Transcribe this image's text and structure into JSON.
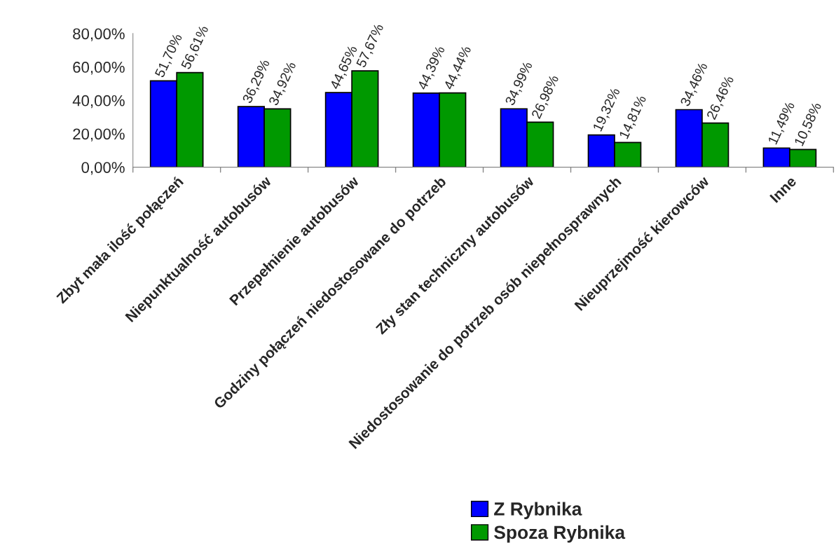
{
  "chart_data": {
    "type": "bar",
    "categories": [
      "Zbyt mała ilość połączeń",
      "Niepunktualność autobusów",
      "Przepełnienie autobusów",
      "Godziny połączeń niedostosowane do potrzeb",
      "Zły stan techniczny autobusów",
      "Niedostosowanie do potrzeb osób niepełnosprawnych",
      "Nieuprzejmość kierowców",
      "Inne"
    ],
    "series": [
      {
        "name": "Z Rybnika",
        "color": "#0000ff",
        "values": [
          51.7,
          36.29,
          44.65,
          44.39,
          34.99,
          19.32,
          34.46,
          11.49
        ],
        "value_labels": [
          "51,70%",
          "36,29%",
          "44,65%",
          "44,39%",
          "34,99%",
          "19,32%",
          "34,46%",
          "11,49%"
        ]
      },
      {
        "name": "Spoza Rybnika",
        "color": "#009900",
        "values": [
          56.61,
          34.92,
          57.67,
          44.44,
          26.98,
          14.81,
          26.46,
          10.58
        ],
        "value_labels": [
          "56,61%",
          "34,92%",
          "57,67%",
          "44,44%",
          "26,98%",
          "14,81%",
          "26,46%",
          "10,58%"
        ]
      }
    ],
    "ylim": [
      0,
      80
    ],
    "yticks": [
      {
        "value": 0,
        "label": "0,00%"
      },
      {
        "value": 20,
        "label": "20,00%"
      },
      {
        "value": 40,
        "label": "40,00%"
      },
      {
        "value": 60,
        "label": "60,00%"
      },
      {
        "value": 80,
        "label": "80,00%"
      }
    ],
    "grid": false,
    "legend": "bottom right"
  }
}
